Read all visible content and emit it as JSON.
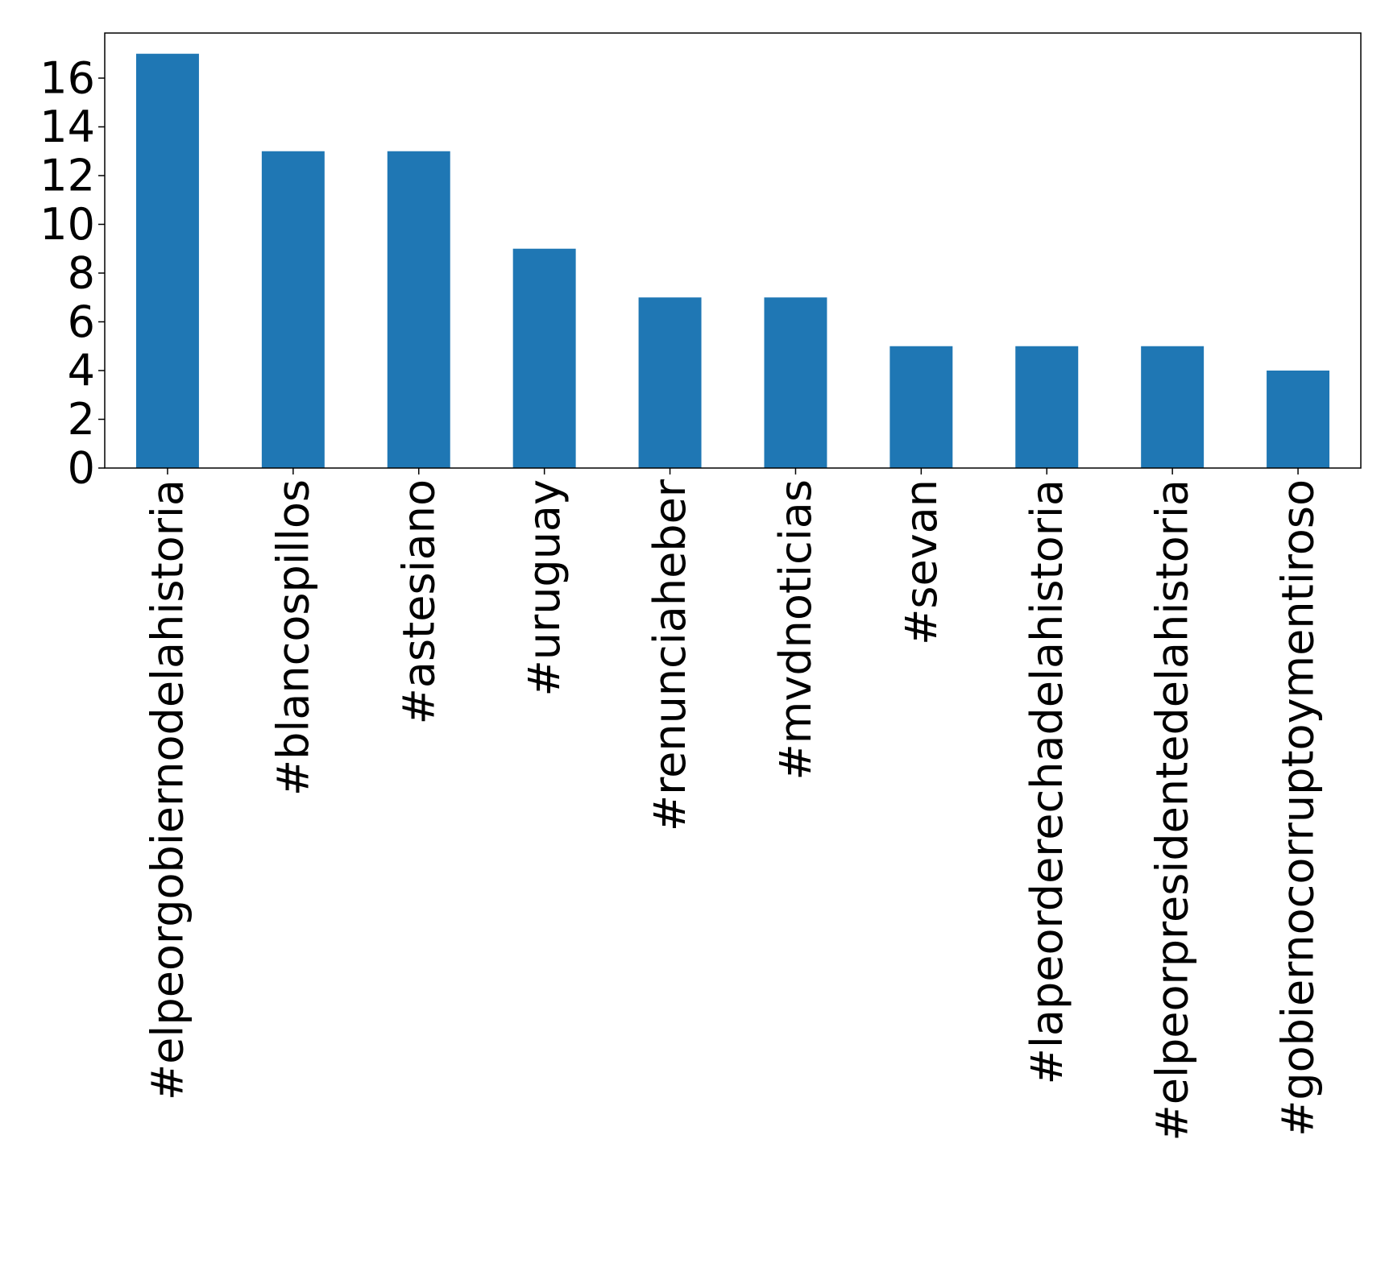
{
  "chart_data": {
    "type": "bar",
    "categories": [
      "#elpeorgobiernodelahistoria",
      "#blancospillos",
      "#astesiano",
      "#uruguay",
      "#renunciaheber",
      "#mvdnoticias",
      "#sevan",
      "#lapeorderechadelahistoria",
      "#elpeorpresidentedelahistoria",
      "#gobiernocorruptoymentiroso"
    ],
    "values": [
      17,
      13,
      13,
      9,
      7,
      7,
      5,
      5,
      5,
      4
    ],
    "ylim": [
      0,
      17.85
    ],
    "yticks": [
      0,
      2,
      4,
      6,
      8,
      10,
      12,
      14,
      16
    ],
    "ytick_labels": [
      "0",
      "2",
      "4",
      "6",
      "8",
      "10",
      "12",
      "14",
      "16"
    ],
    "title": "",
    "xlabel": "",
    "ylabel": "",
    "grid": false,
    "colors": {
      "bar": "#1f77b4",
      "axes": "#000000"
    }
  }
}
